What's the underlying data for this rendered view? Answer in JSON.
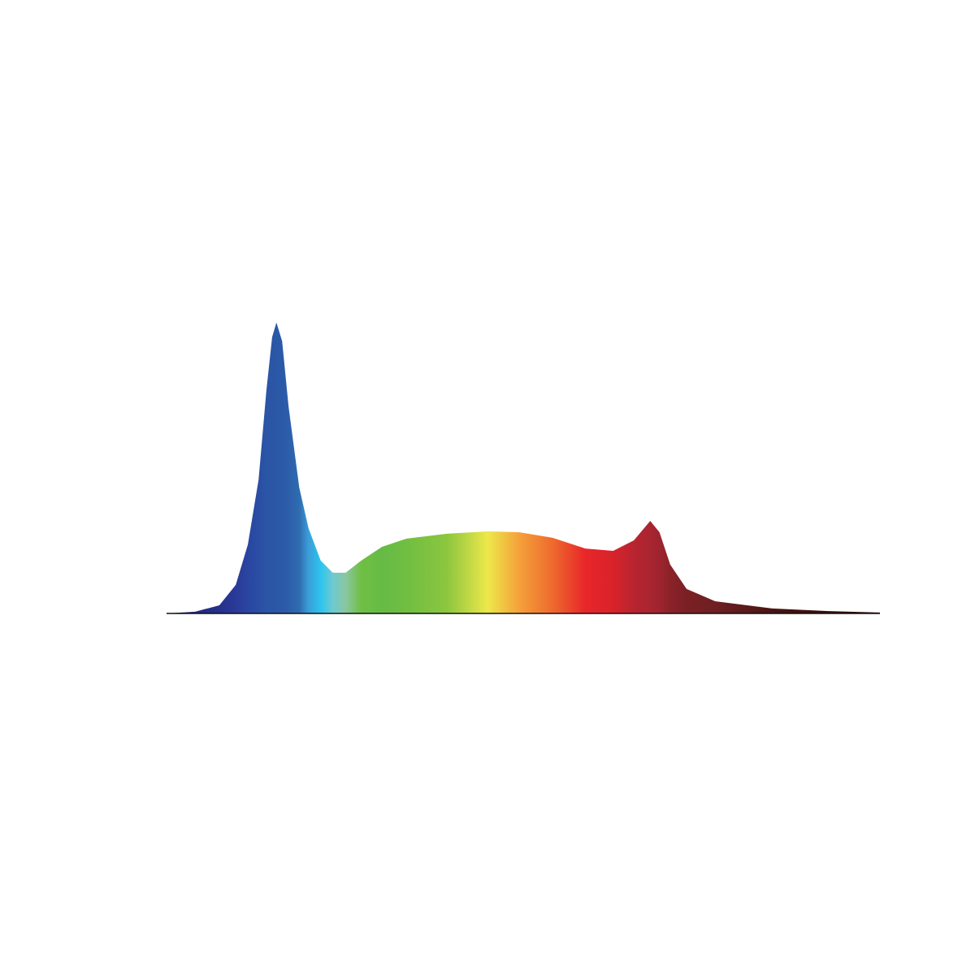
{
  "chart_data": {
    "type": "area",
    "x": [
      0,
      4,
      7.4,
      9.7,
      11.4,
      12.9,
      14.0,
      14.8,
      15.4,
      16.2,
      17.1,
      18.6,
      19.9,
      21.6,
      23.3,
      25.1,
      27.3,
      30.2,
      33.6,
      39.3,
      45,
      49.5,
      54.1,
      58.7,
      62.6,
      65.5,
      67.8,
      69.1,
      70.6,
      72.9,
      76.9,
      84.9,
      92.8,
      100
    ],
    "values": [
      0,
      0.6,
      2.8,
      9.8,
      23.7,
      46,
      76.8,
      95,
      100,
      93.6,
      71.2,
      43.3,
      29.3,
      18.2,
      14,
      14,
      18.2,
      22.9,
      25.7,
      27.4,
      28.2,
      27.9,
      26,
      22.3,
      21.5,
      25.1,
      31.8,
      27.9,
      16.8,
      8.4,
      4.2,
      1.7,
      0.8,
      0.3
    ],
    "colors": [
      "#1a1a60",
      "#222a80",
      "#25308c",
      "#2a3a98",
      "#2a45a0",
      "#2a4ea4",
      "#2b55a5",
      "#2b56a6",
      "#2b57a7",
      "#2b59a8",
      "#2c5eaa",
      "#2f6cb0",
      "#3a9ed8",
      "#2cc4ee",
      "#6ecad0",
      "#8ac6a0",
      "#6fbf44",
      "#66bb46",
      "#70be42",
      "#8cc63f",
      "#ede84a",
      "#f5a03a",
      "#ee6a2e",
      "#e8262a",
      "#d8232a",
      "#b82430",
      "#a82530",
      "#9e2430",
      "#8a2228",
      "#7a2024",
      "#6e1f22",
      "#4a1414",
      "#360c0c",
      "#2a0a0a"
    ],
    "xlim": [
      0,
      100
    ],
    "ylim": [
      0,
      100
    ],
    "baseline_color": "#111111"
  }
}
